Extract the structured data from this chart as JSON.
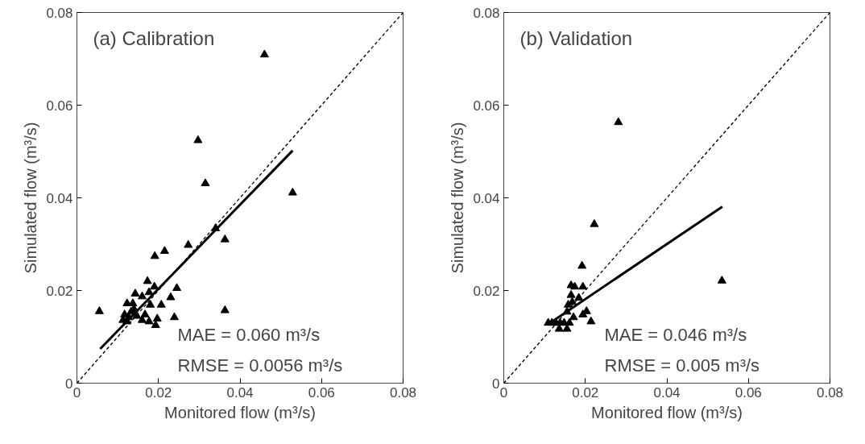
{
  "chart_data": [
    {
      "type": "scatter",
      "title": "(a) Calibration",
      "xlabel": "Monitored flow (m³/s)",
      "ylabel": "Simulated flow (m³/s)",
      "xlim": [
        0,
        0.08
      ],
      "ylim": [
        0,
        0.08
      ],
      "xticks": [
        0,
        0.02,
        0.04,
        0.06,
        0.08
      ],
      "yticks": [
        0,
        0.02,
        0.04,
        0.06,
        0.08
      ],
      "grid": false,
      "marker": "triangle",
      "annotations": [
        "MAE = 0.060 m³/s",
        "RMSE = 0.0056 m³/s"
      ],
      "series": [
        {
          "color": "#000000",
          "x": [
            0.046,
            0.0297,
            0.0315,
            0.0529,
            0.0363,
            0.0363,
            0.0055,
            0.0273,
            0.0191,
            0.0215,
            0.034,
            0.0245,
            0.023,
            0.0239,
            0.0193,
            0.0197,
            0.0207,
            0.0173,
            0.019,
            0.0177,
            0.016,
            0.0143,
            0.0123,
            0.016,
            0.0177,
            0.018,
            0.0167,
            0.0117,
            0.0127,
            0.0133,
            0.0113,
            0.014,
            0.0123,
            0.0147,
            0.0137
          ],
          "values": [
            0.0709,
            0.0524,
            0.0431,
            0.0411,
            0.031,
            0.0157,
            0.0155,
            0.0298,
            0.0274,
            0.0285,
            0.0334,
            0.0205,
            0.0185,
            0.0142,
            0.0125,
            0.0139,
            0.0169,
            0.022,
            0.0208,
            0.0196,
            0.0187,
            0.0193,
            0.0172,
            0.0136,
            0.0133,
            0.0169,
            0.0148,
            0.0148,
            0.0142,
            0.0154,
            0.0136,
            0.016,
            0.0133,
            0.0145,
            0.0172
          ]
        },
        {
          "type": "line",
          "color": "#000000",
          "line_style": "solid",
          "marker": "none",
          "x": [
            0.0057,
            0.0529
          ],
          "values": [
            0.0074,
            0.0502
          ]
        },
        {
          "type": "line",
          "color": "#000000",
          "line_style": "dashed",
          "marker": "none",
          "x": [
            0,
            0.08
          ],
          "values": [
            0,
            0.08
          ]
        }
      ]
    },
    {
      "type": "scatter",
      "title": "(b) Validation",
      "xlabel": "Monitored flow (m³/s)",
      "ylabel": "Simulated flow (m³/s)",
      "xlim": [
        0,
        0.08
      ],
      "ylim": [
        0,
        0.08
      ],
      "xticks": [
        0,
        0.02,
        0.04,
        0.06,
        0.08
      ],
      "yticks": [
        0,
        0.02,
        0.04,
        0.06,
        0.08
      ],
      "grid": false,
      "marker": "triangle",
      "annotations": [
        "MAE = 0.046 m³/s",
        "RMSE = 0.005 m³/s"
      ],
      "series": [
        {
          "color": "#000000",
          "x": [
            0.0281,
            0.0222,
            0.0535,
            0.0192,
            0.0194,
            0.0165,
            0.0174,
            0.0165,
            0.0168,
            0.0184,
            0.0158,
            0.0155,
            0.0203,
            0.0194,
            0.0214,
            0.0171,
            0.0155,
            0.0136,
            0.0109,
            0.0118,
            0.0128,
            0.0138,
            0.0148,
            0.0161
          ],
          "values": [
            0.0563,
            0.0343,
            0.0221,
            0.0253,
            0.0208,
            0.0211,
            0.0208,
            0.019,
            0.0175,
            0.0184,
            0.0169,
            0.0154,
            0.0155,
            0.0148,
            0.0133,
            0.0142,
            0.0117,
            0.0117,
            0.013,
            0.013,
            0.013,
            0.013,
            0.013,
            0.013
          ]
        },
        {
          "type": "line",
          "color": "#000000",
          "line_style": "solid",
          "marker": "none",
          "x": [
            0.011,
            0.0536
          ],
          "values": [
            0.0128,
            0.0381
          ]
        },
        {
          "type": "line",
          "color": "#000000",
          "line_style": "dashed",
          "marker": "none",
          "x": [
            0,
            0.08
          ],
          "values": [
            0,
            0.08
          ]
        }
      ]
    }
  ]
}
